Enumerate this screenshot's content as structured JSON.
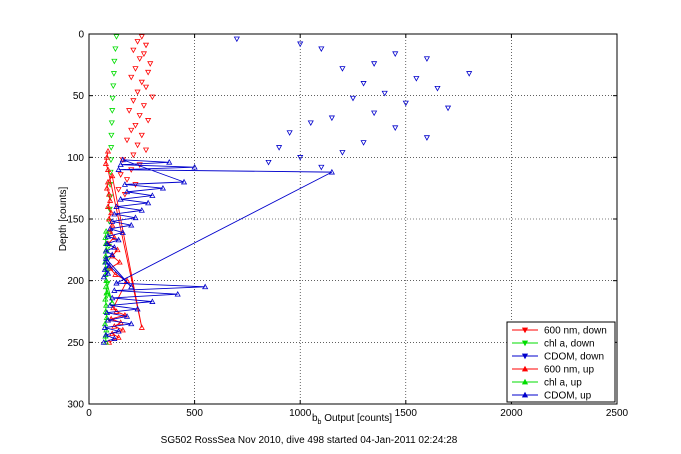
{
  "chart_data": {
    "type": "scatter",
    "title": "",
    "xlabel_main": "b",
    "xlabel_sub": "b",
    "xlabel_rest": " Output [counts]",
    "ylabel": "Depth [counts]",
    "caption": "SG502 RossSea Nov 2010, dive 498 started 04-Jan-2011 02:24:28",
    "xlim": [
      0,
      2500
    ],
    "ylim": [
      0,
      300
    ],
    "y_reversed": true,
    "grid": true,
    "legend_position": "lower-right",
    "xticks": [
      "0",
      "500",
      "1000",
      "1500",
      "2000",
      "2500"
    ],
    "yticks": [
      "0",
      "50",
      "100",
      "150",
      "200",
      "250",
      "300"
    ],
    "series": [
      {
        "name": "600 nm, down",
        "color": "#ff0000",
        "marker": "triangle-down",
        "line": false,
        "x": [
          250,
          230,
          270,
          210,
          260,
          240,
          290,
          220,
          280,
          200,
          250,
          270,
          230,
          300,
          210,
          260,
          190,
          240,
          280,
          220,
          200,
          250,
          180,
          230,
          270,
          210,
          160,
          240,
          200,
          150,
          180,
          220,
          140,
          170
        ],
        "y": [
          2,
          6,
          9,
          13,
          16,
          20,
          24,
          28,
          31,
          35,
          39,
          43,
          47,
          51,
          54,
          58,
          62,
          66,
          70,
          74,
          78,
          82,
          86,
          90,
          94,
          98,
          102,
          106,
          110,
          114,
          118,
          122,
          126,
          130
        ]
      },
      {
        "name": "chl a, down",
        "color": "#00dd00",
        "marker": "triangle-down",
        "line": false,
        "x": [
          130,
          125,
          120,
          118,
          115,
          112,
          110,
          108,
          106,
          105,
          104,
          102,
          100,
          100,
          98,
          96,
          95,
          94,
          92,
          90,
          88,
          86
        ],
        "y": [
          2,
          12,
          22,
          32,
          42,
          52,
          62,
          72,
          82,
          92,
          102,
          112,
          122,
          132,
          142,
          152,
          162,
          172,
          182,
          192,
          202,
          212
        ]
      },
      {
        "name": "CDOM, down",
        "color": "#0000cc",
        "marker": "triangle-down",
        "line": false,
        "x": [
          700,
          1000,
          1100,
          1450,
          1600,
          1350,
          1200,
          1800,
          1550,
          1300,
          1650,
          1400,
          1250,
          1500,
          1700,
          1350,
          1150,
          1050,
          1450,
          950,
          1600,
          1300,
          900,
          1200,
          1000,
          850,
          1100
        ],
        "y": [
          4,
          8,
          12,
          16,
          20,
          24,
          28,
          32,
          36,
          40,
          44,
          48,
          52,
          56,
          60,
          64,
          68,
          72,
          76,
          80,
          84,
          88,
          92,
          96,
          100,
          104,
          108
        ]
      },
      {
        "name": "600 nm, up",
        "color": "#ff0000",
        "marker": "triangle-up",
        "line": true,
        "x": [
          95,
          140,
          110,
          160,
          120,
          150,
          105,
          170,
          130,
          115,
          180,
          125,
          100,
          145,
          110,
          135,
          90,
          120,
          100,
          110,
          95,
          105,
          90,
          100,
          95,
          85,
          90,
          110,
          250,
          90,
          80,
          85,
          90
        ],
        "y": [
          250,
          246,
          243,
          240,
          237,
          234,
          231,
          228,
          225,
          222,
          200,
          195,
          190,
          185,
          180,
          175,
          170,
          165,
          160,
          155,
          150,
          145,
          140,
          135,
          130,
          125,
          120,
          115,
          238,
          110,
          105,
          100,
          95
        ]
      },
      {
        "name": "chl a, up",
        "color": "#00dd00",
        "marker": "triangle-up",
        "line": true,
        "x": [
          80,
          78,
          82,
          76,
          84,
          79,
          81,
          77,
          83,
          80,
          110,
          82,
          78,
          80,
          76,
          79,
          82,
          80,
          78,
          81
        ],
        "y": [
          250,
          245,
          240,
          235,
          230,
          225,
          220,
          215,
          210,
          205,
          218,
          200,
          195,
          190,
          185,
          180,
          175,
          170,
          165,
          160
        ]
      },
      {
        "name": "CDOM, up",
        "color": "#0000cc",
        "marker": "triangle-up",
        "line": true,
        "x": [
          70,
          120,
          80,
          140,
          75,
          200,
          90,
          180,
          85,
          230,
          100,
          300,
          110,
          420,
          120,
          550,
          130,
          1150,
          140,
          500,
          150,
          380,
          160,
          450,
          170,
          350,
          180,
          300,
          150,
          280,
          130,
          250,
          120,
          220,
          110,
          200,
          100,
          160,
          90,
          140,
          85,
          120,
          80,
          110,
          80,
          200,
          80,
          95,
          75,
          90,
          70
        ],
        "y": [
          250,
          247,
          244,
          241,
          238,
          235,
          232,
          229,
          226,
          223,
          220,
          217,
          214,
          211,
          208,
          205,
          202,
          112,
          110,
          108,
          106,
          104,
          102,
          120,
          122,
          125,
          128,
          131,
          134,
          137,
          140,
          143,
          146,
          149,
          152,
          155,
          158,
          161,
          164,
          167,
          170,
          173,
          176,
          179,
          182,
          205,
          185,
          188,
          191,
          194,
          197
        ]
      }
    ]
  },
  "styles": {
    "axis_color": "#000000",
    "grid_color": "#000000",
    "background": "#ffffff"
  }
}
